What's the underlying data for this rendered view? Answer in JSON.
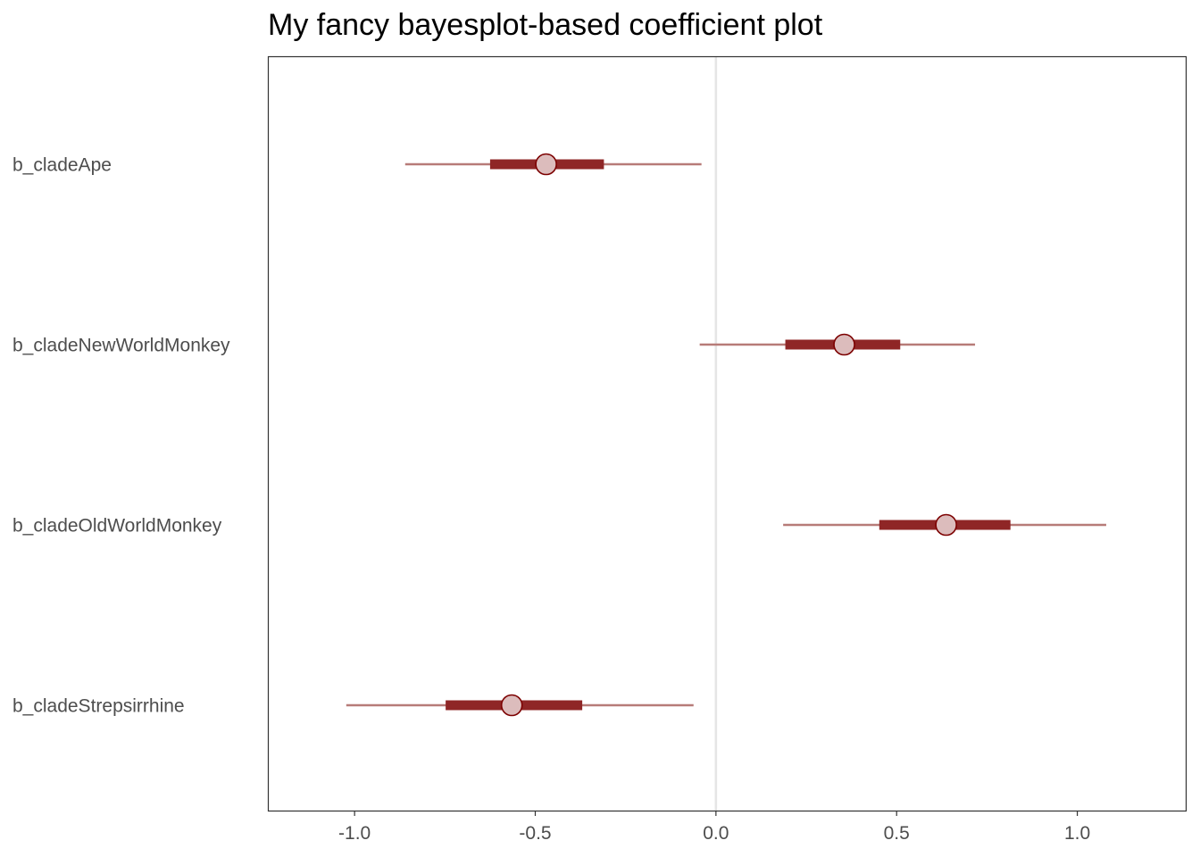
{
  "chart_data": {
    "type": "interval",
    "title": "My fancy bayesplot-based coefficient plot",
    "xlabel": "",
    "ylabel": "",
    "xlim": [
      -1.24,
      1.3
    ],
    "x_ticks": [
      -1.0,
      -0.5,
      0.0,
      0.5,
      1.0
    ],
    "x_tick_labels": [
      "-1.0",
      "-0.5",
      "0.0",
      "0.5",
      "1.0"
    ],
    "reference_line": 0.0,
    "grid": false,
    "categories": [
      "b_cladeApe",
      "b_cladeNewWorldMonkey",
      "b_cladeOldWorldMonkey",
      "b_cladeStrepsirrhine"
    ],
    "series": [
      {
        "point": [
          -0.47,
          0.355,
          0.637,
          -0.565
        ],
        "inner_low": [
          -0.625,
          0.192,
          0.452,
          -0.748
        ],
        "inner_high": [
          -0.31,
          0.51,
          0.815,
          -0.37
        ],
        "outer_low": [
          -0.86,
          -0.045,
          0.186,
          -1.023
        ],
        "outer_high": [
          -0.04,
          0.717,
          1.08,
          -0.062
        ]
      }
    ],
    "colors": {
      "outer_line": "#b77b78",
      "inner_line": "#8f2626",
      "point_fill": "#dcbcbc",
      "point_stroke": "#7c0000",
      "reference_line": "#e5e5e5",
      "panel_border": "#333333"
    }
  }
}
